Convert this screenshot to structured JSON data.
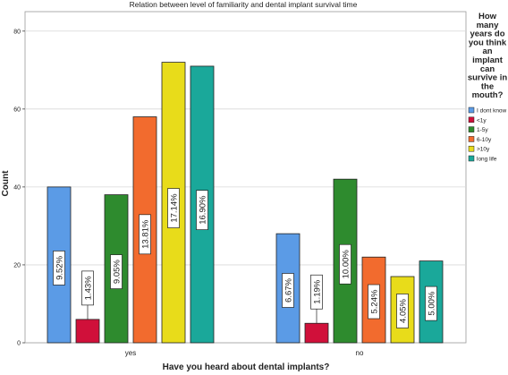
{
  "chart_data": {
    "type": "bar",
    "title": "Relation between level of familiarity and dental implant survival time",
    "xlabel": "Have you heard about dental implants?",
    "ylabel": "Count",
    "ylim": [
      0,
      85
    ],
    "yticks": [
      0,
      20,
      40,
      60,
      80
    ],
    "grid": true,
    "categories": [
      "yes",
      "no"
    ],
    "legend": {
      "title_lines": [
        "How",
        "many",
        "years do",
        "you think",
        "an",
        "implant",
        "can",
        "survive in",
        "the",
        "mouth?"
      ],
      "placement": "right"
    },
    "series": [
      {
        "name": "I dont know",
        "color": "#5b9be6",
        "values": [
          40,
          28
        ],
        "labels": [
          "9.52%",
          "6.67%"
        ]
      },
      {
        "name": "<1y",
        "color": "#d0103a",
        "values": [
          6,
          5
        ],
        "labels": [
          "1.43%",
          "1.19%"
        ]
      },
      {
        "name": "1-5y",
        "color": "#2e8b2e",
        "values": [
          38,
          42
        ],
        "labels": [
          "9.05%",
          "10.00%"
        ]
      },
      {
        "name": "6-10y",
        "color": "#f26b2e",
        "values": [
          58,
          22
        ],
        "labels": [
          "13.81%",
          "5.24%"
        ]
      },
      {
        "name": ">10y",
        "color": "#e8dc1a",
        "values": [
          72,
          17
        ],
        "labels": [
          "17.14%",
          "4.05%"
        ]
      },
      {
        "name": "long life",
        "color": "#1aa89a",
        "values": [
          71,
          21
        ],
        "labels": [
          "16.90%",
          "5.00%"
        ]
      }
    ]
  }
}
